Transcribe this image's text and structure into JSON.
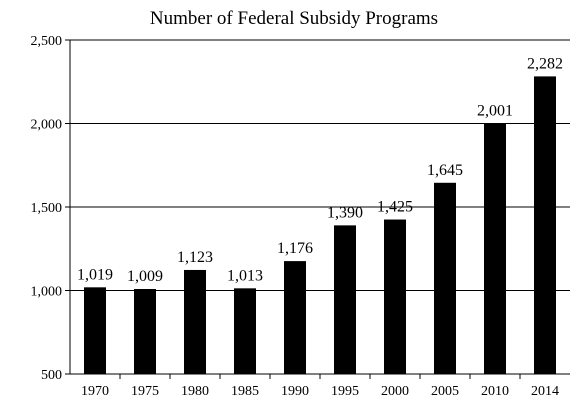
{
  "chart_data": {
    "type": "bar",
    "title": "Number of Federal Subsidy Programs",
    "xlabel": "",
    "ylabel": "",
    "categories": [
      "1970",
      "1975",
      "1980",
      "1985",
      "1990",
      "1995",
      "2000",
      "2005",
      "2010",
      "2014"
    ],
    "values": [
      1019,
      1009,
      1123,
      1013,
      1176,
      1390,
      1425,
      1645,
      2001,
      2282
    ],
    "value_labels": [
      "1,019",
      "1,009",
      "1,123",
      "1,013",
      "1,176",
      "1,390",
      "1,425",
      "1,645",
      "2,001",
      "2,282"
    ],
    "ylim": [
      500,
      2500
    ],
    "yticks": [
      500,
      1000,
      1500,
      2000,
      2500
    ],
    "ytick_labels": [
      "500",
      "1,000",
      "1,500",
      "2,000",
      "2,500"
    ],
    "grid": true,
    "bar_color": "#000000"
  }
}
